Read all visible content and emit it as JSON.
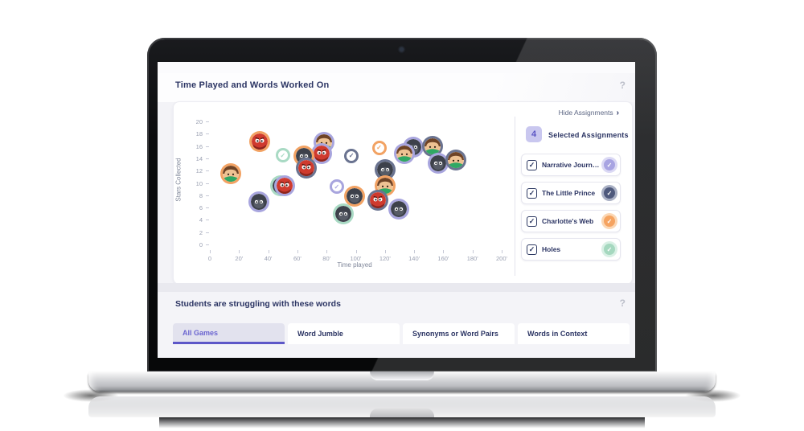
{
  "header": {
    "title": "Time Played and Words Worked On",
    "help_icon": "?"
  },
  "chart_panel": {
    "hide_assignments_label": "Hide Assignments",
    "chevron_icon": "›",
    "selected_count": "4",
    "selected_label": "Selected Assignments",
    "checkbox_glyph": "✓",
    "assignments": [
      {
        "label": "Narrative Journe...",
        "badge_color": "#a8a4e2",
        "ring_color": "#dbd9f4"
      },
      {
        "label": "The Little Prince",
        "badge_color": "#4e597c",
        "ring_color": "#a9b0c4"
      },
      {
        "label": "Charlotte's Web",
        "badge_color": "#f5a360",
        "ring_color": "#fbd7b4"
      },
      {
        "label": "Holes",
        "badge_color": "#a5d8bf",
        "ring_color": "#d9f0e5"
      }
    ]
  },
  "chart_data": {
    "type": "scatter",
    "title": "Time Played and Words Worked On",
    "xlabel": "Time played",
    "ylabel": "Stars Collected",
    "xlim": [
      0,
      200
    ],
    "ylim": [
      0,
      20
    ],
    "x_ticks": [
      "0",
      "20'",
      "40'",
      "60'",
      "80'",
      "100'",
      "120'",
      "140'",
      "160'",
      "180'",
      "200'"
    ],
    "y_ticks": [
      "20",
      "18",
      "16",
      "14",
      "12",
      "10",
      "8",
      "6",
      "4",
      "2",
      "0"
    ],
    "grid": false,
    "legend": false,
    "ring_colors": {
      "orange": "#f2a263",
      "purple": "#a8a5de",
      "navy": "#6a7390",
      "green": "#a9dac4"
    },
    "points": [
      {
        "x": 36,
        "y": 16.3,
        "ring": "orange",
        "char": "red"
      },
      {
        "x": 80,
        "y": 16.2,
        "ring": "purple",
        "char": "kid"
      },
      {
        "x": 78,
        "y": 14.4,
        "ring": "purple",
        "char": "red"
      },
      {
        "x": 66,
        "y": 14.0,
        "ring": "orange",
        "char": "dark"
      },
      {
        "x": 68,
        "y": 12.0,
        "ring": "navy",
        "char": "red"
      },
      {
        "x": 16,
        "y": 11.1,
        "ring": "orange",
        "char": "kid"
      },
      {
        "x": 50,
        "y": 9.2,
        "ring": "green",
        "char": "dark"
      },
      {
        "x": 53,
        "y": 9.2,
        "ring": "purple",
        "char": "red"
      },
      {
        "x": 35,
        "y": 6.5,
        "ring": "purple",
        "char": "dark"
      },
      {
        "x": 141,
        "y": 15.4,
        "ring": "purple",
        "char": "dark"
      },
      {
        "x": 135,
        "y": 14.4,
        "ring": "purple",
        "char": "kid"
      },
      {
        "x": 154,
        "y": 15.6,
        "ring": "navy",
        "char": "kid"
      },
      {
        "x": 158,
        "y": 12.8,
        "ring": "purple",
        "char": "dark"
      },
      {
        "x": 170,
        "y": 13.3,
        "ring": "navy",
        "char": "kid"
      },
      {
        "x": 122,
        "y": 11.8,
        "ring": "navy",
        "char": "dark"
      },
      {
        "x": 122,
        "y": 9.2,
        "ring": "orange",
        "char": "kid"
      },
      {
        "x": 101,
        "y": 7.5,
        "ring": "orange",
        "char": "dark"
      },
      {
        "x": 117,
        "y": 6.8,
        "ring": "navy",
        "char": "red"
      },
      {
        "x": 131,
        "y": 5.4,
        "ring": "purple",
        "char": "dark"
      },
      {
        "x": 93,
        "y": 4.6,
        "ring": "green",
        "char": "dark"
      }
    ],
    "check_points": [
      {
        "x": 50,
        "y": 14.5,
        "ring": "green"
      },
      {
        "x": 97,
        "y": 14.4,
        "ring": "navy"
      },
      {
        "x": 116,
        "y": 15.7,
        "ring": "orange"
      },
      {
        "x": 87,
        "y": 9.4,
        "ring": "purple"
      }
    ]
  },
  "words_section": {
    "title": "Students are struggling with these words",
    "help_icon": "?",
    "tabs": [
      {
        "label": "All Games",
        "active": true
      },
      {
        "label": "Word Jumble",
        "active": false
      },
      {
        "label": "Synonyms or Word Pairs",
        "active": false
      },
      {
        "label": "Words in Context",
        "active": false
      }
    ]
  }
}
